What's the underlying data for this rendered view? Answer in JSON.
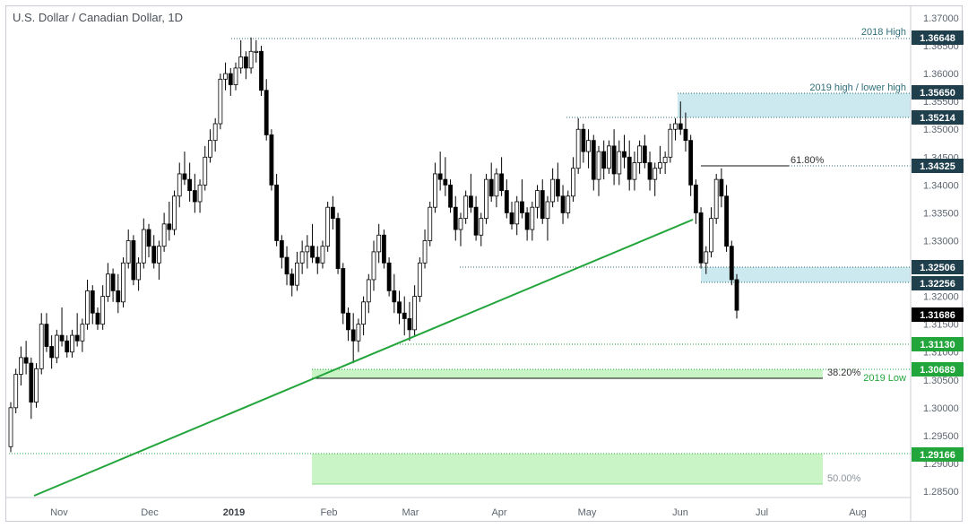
{
  "chart_data": {
    "type": "candlestick",
    "title": "U.S. Dollar / Canadian Dollar, 1D",
    "y_ticks": [
      "1.37000",
      "1.36500",
      "1.36000",
      "1.35500",
      "1.35000",
      "1.34500",
      "1.34000",
      "1.33500",
      "1.33000",
      "1.32500",
      "1.32000",
      "1.31500",
      "1.31000",
      "1.30500",
      "1.30000",
      "1.29500",
      "1.29000",
      "1.28500"
    ],
    "x_ticks": [
      {
        "label": "Nov",
        "bold": false
      },
      {
        "label": "Dec",
        "bold": false
      },
      {
        "label": "2019",
        "bold": true
      },
      {
        "label": "Feb",
        "bold": false
      },
      {
        "label": "Mar",
        "bold": false
      },
      {
        "label": "Apr",
        "bold": false
      },
      {
        "label": "May",
        "bold": false
      },
      {
        "label": "Jun",
        "bold": false
      },
      {
        "label": "Jul",
        "bold": false
      },
      {
        "label": "Aug",
        "bold": false
      }
    ],
    "ylim": [
      1.2835,
      1.3715
    ],
    "price_labels": [
      {
        "value": "1.36648",
        "color": "#1f3f4c"
      },
      {
        "value": "1.35650",
        "color": "#1f3f4c"
      },
      {
        "value": "1.35214",
        "color": "#1f3f4c"
      },
      {
        "value": "1.34325",
        "color": "#1f3f4c"
      },
      {
        "value": "1.32506",
        "color": "#1f3f4c"
      },
      {
        "value": "1.32256",
        "color": "#1f3f4c"
      },
      {
        "value": "1.31686",
        "color": "#000000"
      },
      {
        "value": "1.31130",
        "color": "#22a53b"
      },
      {
        "value": "1.30689",
        "color": "#22a53b"
      },
      {
        "value": "1.29166",
        "color": "#22a53b"
      }
    ],
    "annotations": {
      "high_2018": "2018 High",
      "high_2019": "2019 high / lower high",
      "fib_618": "61.80%",
      "fib_382": "38.20%",
      "low_2019": "2019 Low",
      "fib_50": "50.00%"
    },
    "zones": [
      {
        "name": "resistance-2019-high",
        "from": 1.35214,
        "to": 1.3565,
        "color": "#cde9f0"
      },
      {
        "name": "resistance-125",
        "from": 1.32256,
        "to": 1.32506,
        "color": "#cde9f0"
      },
      {
        "name": "support-2019-low",
        "from": 1.3053,
        "to": 1.30689,
        "color": "#c9f5c6"
      },
      {
        "name": "fib-50-zone",
        "from": 1.2862,
        "to": 1.29166,
        "color": "#c9f5c6"
      }
    ],
    "trendline": {
      "color": "#22a53b"
    },
    "candles_ohlc": [
      [
        1.293,
        1.301,
        1.292,
        1.3
      ],
      [
        1.3,
        1.307,
        1.299,
        1.306
      ],
      [
        1.306,
        1.311,
        1.304,
        1.309
      ],
      [
        1.309,
        1.312,
        1.306,
        1.308
      ],
      [
        1.308,
        1.309,
        1.298,
        1.301
      ],
      [
        1.301,
        1.308,
        1.3,
        1.307
      ],
      [
        1.307,
        1.317,
        1.306,
        1.315
      ],
      [
        1.315,
        1.317,
        1.31,
        1.311
      ],
      [
        1.311,
        1.313,
        1.307,
        1.309
      ],
      [
        1.309,
        1.314,
        1.308,
        1.313
      ],
      [
        1.313,
        1.318,
        1.311,
        1.312
      ],
      [
        1.312,
        1.313,
        1.309,
        1.31
      ],
      [
        1.31,
        1.314,
        1.309,
        1.313
      ],
      [
        1.313,
        1.317,
        1.311,
        1.312
      ],
      [
        1.312,
        1.316,
        1.31,
        1.315
      ],
      [
        1.315,
        1.323,
        1.314,
        1.321
      ],
      [
        1.321,
        1.322,
        1.315,
        1.317
      ],
      [
        1.317,
        1.318,
        1.314,
        1.315
      ],
      [
        1.315,
        1.322,
        1.314,
        1.32
      ],
      [
        1.32,
        1.326,
        1.319,
        1.324
      ],
      [
        1.324,
        1.325,
        1.319,
        1.321
      ],
      [
        1.321,
        1.324,
        1.317,
        1.319
      ],
      [
        1.319,
        1.327,
        1.318,
        1.326
      ],
      [
        1.326,
        1.332,
        1.325,
        1.33
      ],
      [
        1.33,
        1.331,
        1.322,
        1.323
      ],
      [
        1.323,
        1.327,
        1.321,
        1.326
      ],
      [
        1.326,
        1.334,
        1.325,
        1.332
      ],
      [
        1.332,
        1.333,
        1.327,
        1.329
      ],
      [
        1.329,
        1.331,
        1.325,
        1.326
      ],
      [
        1.326,
        1.33,
        1.323,
        1.329
      ],
      [
        1.329,
        1.335,
        1.328,
        1.333
      ],
      [
        1.333,
        1.337,
        1.33,
        1.332
      ],
      [
        1.332,
        1.339,
        1.331,
        1.338
      ],
      [
        1.338,
        1.344,
        1.336,
        1.342
      ],
      [
        1.342,
        1.346,
        1.34,
        1.341
      ],
      [
        1.341,
        1.344,
        1.337,
        1.339
      ],
      [
        1.339,
        1.342,
        1.335,
        1.337
      ],
      [
        1.337,
        1.341,
        1.335,
        1.34
      ],
      [
        1.34,
        1.347,
        1.339,
        1.345
      ],
      [
        1.345,
        1.35,
        1.344,
        1.348
      ],
      [
        1.348,
        1.352,
        1.346,
        1.351
      ],
      [
        1.351,
        1.36,
        1.35,
        1.359
      ],
      [
        1.359,
        1.362,
        1.357,
        1.36
      ],
      [
        1.36,
        1.361,
        1.356,
        1.358
      ],
      [
        1.358,
        1.362,
        1.357,
        1.361
      ],
      [
        1.361,
        1.366,
        1.36,
        1.363
      ],
      [
        1.363,
        1.364,
        1.359,
        1.361
      ],
      [
        1.361,
        1.3665,
        1.36,
        1.364
      ],
      [
        1.364,
        1.366,
        1.362,
        1.364
      ],
      [
        1.364,
        1.365,
        1.356,
        1.357
      ],
      [
        1.357,
        1.359,
        1.348,
        1.349
      ],
      [
        1.349,
        1.35,
        1.339,
        1.34
      ],
      [
        1.34,
        1.342,
        1.329,
        1.33
      ],
      [
        1.33,
        1.331,
        1.325,
        1.327
      ],
      [
        1.327,
        1.329,
        1.322,
        1.324
      ],
      [
        1.324,
        1.325,
        1.32,
        1.322
      ],
      [
        1.322,
        1.328,
        1.321,
        1.326
      ],
      [
        1.326,
        1.33,
        1.324,
        1.328
      ],
      [
        1.328,
        1.331,
        1.325,
        1.329
      ],
      [
        1.329,
        1.333,
        1.326,
        1.327
      ],
      [
        1.327,
        1.329,
        1.324,
        1.326
      ],
      [
        1.326,
        1.33,
        1.325,
        1.329
      ],
      [
        1.329,
        1.337,
        1.328,
        1.336
      ],
      [
        1.336,
        1.338,
        1.332,
        1.334
      ],
      [
        1.334,
        1.335,
        1.324,
        1.325
      ],
      [
        1.325,
        1.326,
        1.315,
        1.317
      ],
      [
        1.317,
        1.318,
        1.312,
        1.314
      ],
      [
        1.314,
        1.317,
        1.308,
        1.312
      ],
      [
        1.312,
        1.316,
        1.31,
        1.315
      ],
      [
        1.315,
        1.32,
        1.313,
        1.319
      ],
      [
        1.319,
        1.324,
        1.317,
        1.323
      ],
      [
        1.323,
        1.33,
        1.321,
        1.328
      ],
      [
        1.328,
        1.333,
        1.326,
        1.331
      ],
      [
        1.331,
        1.332,
        1.325,
        1.326
      ],
      [
        1.326,
        1.327,
        1.32,
        1.321
      ],
      [
        1.321,
        1.324,
        1.317,
        1.319
      ],
      [
        1.319,
        1.321,
        1.315,
        1.317
      ],
      [
        1.317,
        1.32,
        1.313,
        1.316
      ],
      [
        1.316,
        1.319,
        1.312,
        1.314
      ],
      [
        1.314,
        1.322,
        1.313,
        1.32
      ],
      [
        1.32,
        1.327,
        1.319,
        1.326
      ],
      [
        1.326,
        1.332,
        1.325,
        1.33
      ],
      [
        1.33,
        1.337,
        1.329,
        1.336
      ],
      [
        1.336,
        1.344,
        1.335,
        1.342
      ],
      [
        1.342,
        1.346,
        1.339,
        1.341
      ],
      [
        1.341,
        1.345,
        1.338,
        1.34
      ],
      [
        1.34,
        1.341,
        1.335,
        1.336
      ],
      [
        1.336,
        1.338,
        1.33,
        1.332
      ],
      [
        1.332,
        1.335,
        1.329,
        1.334
      ],
      [
        1.334,
        1.339,
        1.333,
        1.338
      ],
      [
        1.338,
        1.342,
        1.335,
        1.336
      ],
      [
        1.336,
        1.338,
        1.33,
        1.331
      ],
      [
        1.331,
        1.335,
        1.329,
        1.334
      ],
      [
        1.334,
        1.342,
        1.333,
        1.341
      ],
      [
        1.341,
        1.344,
        1.337,
        1.338
      ],
      [
        1.338,
        1.343,
        1.336,
        1.342
      ],
      [
        1.342,
        1.345,
        1.338,
        1.339
      ],
      [
        1.339,
        1.341,
        1.334,
        1.335
      ],
      [
        1.335,
        1.337,
        1.332,
        1.333
      ],
      [
        1.333,
        1.338,
        1.331,
        1.337
      ],
      [
        1.337,
        1.341,
        1.334,
        1.335
      ],
      [
        1.335,
        1.336,
        1.33,
        1.332
      ],
      [
        1.332,
        1.337,
        1.33,
        1.336
      ],
      [
        1.336,
        1.34,
        1.334,
        1.339
      ],
      [
        1.339,
        1.341,
        1.333,
        1.334
      ],
      [
        1.334,
        1.338,
        1.33,
        1.337
      ],
      [
        1.337,
        1.343,
        1.336,
        1.341
      ],
      [
        1.341,
        1.344,
        1.337,
        1.338
      ],
      [
        1.338,
        1.34,
        1.333,
        1.335
      ],
      [
        1.335,
        1.339,
        1.334,
        1.338
      ],
      [
        1.338,
        1.345,
        1.337,
        1.343
      ],
      [
        1.343,
        1.352,
        1.342,
        1.35
      ],
      [
        1.35,
        1.351,
        1.344,
        1.346
      ],
      [
        1.346,
        1.35,
        1.343,
        1.348
      ],
      [
        1.348,
        1.349,
        1.339,
        1.341
      ],
      [
        1.341,
        1.347,
        1.338,
        1.346
      ],
      [
        1.346,
        1.348,
        1.341,
        1.343
      ],
      [
        1.343,
        1.348,
        1.342,
        1.347
      ],
      [
        1.347,
        1.35,
        1.34,
        1.342
      ],
      [
        1.342,
        1.348,
        1.34,
        1.346
      ],
      [
        1.346,
        1.349,
        1.343,
        1.345
      ],
      [
        1.345,
        1.348,
        1.339,
        1.341
      ],
      [
        1.341,
        1.346,
        1.339,
        1.344
      ],
      [
        1.344,
        1.348,
        1.342,
        1.347
      ],
      [
        1.347,
        1.349,
        1.343,
        1.344
      ],
      [
        1.344,
        1.346,
        1.339,
        1.341
      ],
      [
        1.341,
        1.344,
        1.338,
        1.343
      ],
      [
        1.343,
        1.347,
        1.342,
        1.344
      ],
      [
        1.344,
        1.346,
        1.342,
        1.345
      ],
      [
        1.345,
        1.351,
        1.344,
        1.35
      ],
      [
        1.35,
        1.352,
        1.348,
        1.351
      ],
      [
        1.351,
        1.355,
        1.349,
        1.35
      ],
      [
        1.35,
        1.353,
        1.346,
        1.348
      ],
      [
        1.348,
        1.349,
        1.338,
        1.34
      ],
      [
        1.34,
        1.341,
        1.333,
        1.335
      ],
      [
        1.335,
        1.336,
        1.325,
        1.326
      ],
      [
        1.326,
        1.329,
        1.324,
        1.328
      ],
      [
        1.328,
        1.336,
        1.327,
        1.334
      ],
      [
        1.334,
        1.342,
        1.333,
        1.341
      ],
      [
        1.341,
        1.343,
        1.336,
        1.338
      ],
      [
        1.338,
        1.34,
        1.328,
        1.329
      ],
      [
        1.329,
        1.33,
        1.322,
        1.323
      ],
      [
        1.323,
        1.324,
        1.316,
        1.3175
      ]
    ]
  }
}
